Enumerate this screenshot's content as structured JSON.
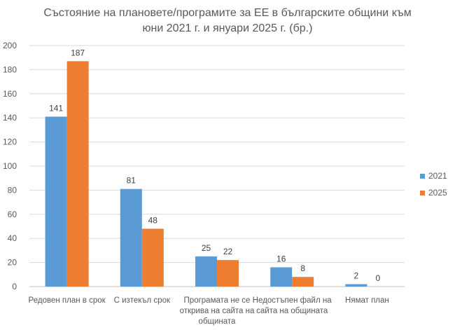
{
  "chart_data": {
    "type": "bar",
    "title_lines": [
      "Състояние на плановете/програмите за ЕЕ в българските общини към",
      "юни 2021 г. и януари 2025 г. (бр.)"
    ],
    "categories": [
      [
        "Редовен план в срок"
      ],
      [
        "С изтекъл срок"
      ],
      [
        "Програмата не се",
        "открива на сайта на",
        "общината"
      ],
      [
        "Недостъпен файл на",
        "сайта на общината"
      ],
      [
        "Нямат план"
      ]
    ],
    "series": [
      {
        "name": "2021",
        "color": "#5B9BD5",
        "values": [
          141,
          81,
          25,
          16,
          2
        ]
      },
      {
        "name": "2025",
        "color": "#ED7D31",
        "values": [
          187,
          48,
          22,
          8,
          0
        ]
      }
    ],
    "ylim": [
      0,
      200
    ],
    "yticks": [
      0,
      20,
      40,
      60,
      80,
      100,
      120,
      140,
      160,
      180,
      200
    ],
    "grid": true,
    "legend_position": "right"
  }
}
